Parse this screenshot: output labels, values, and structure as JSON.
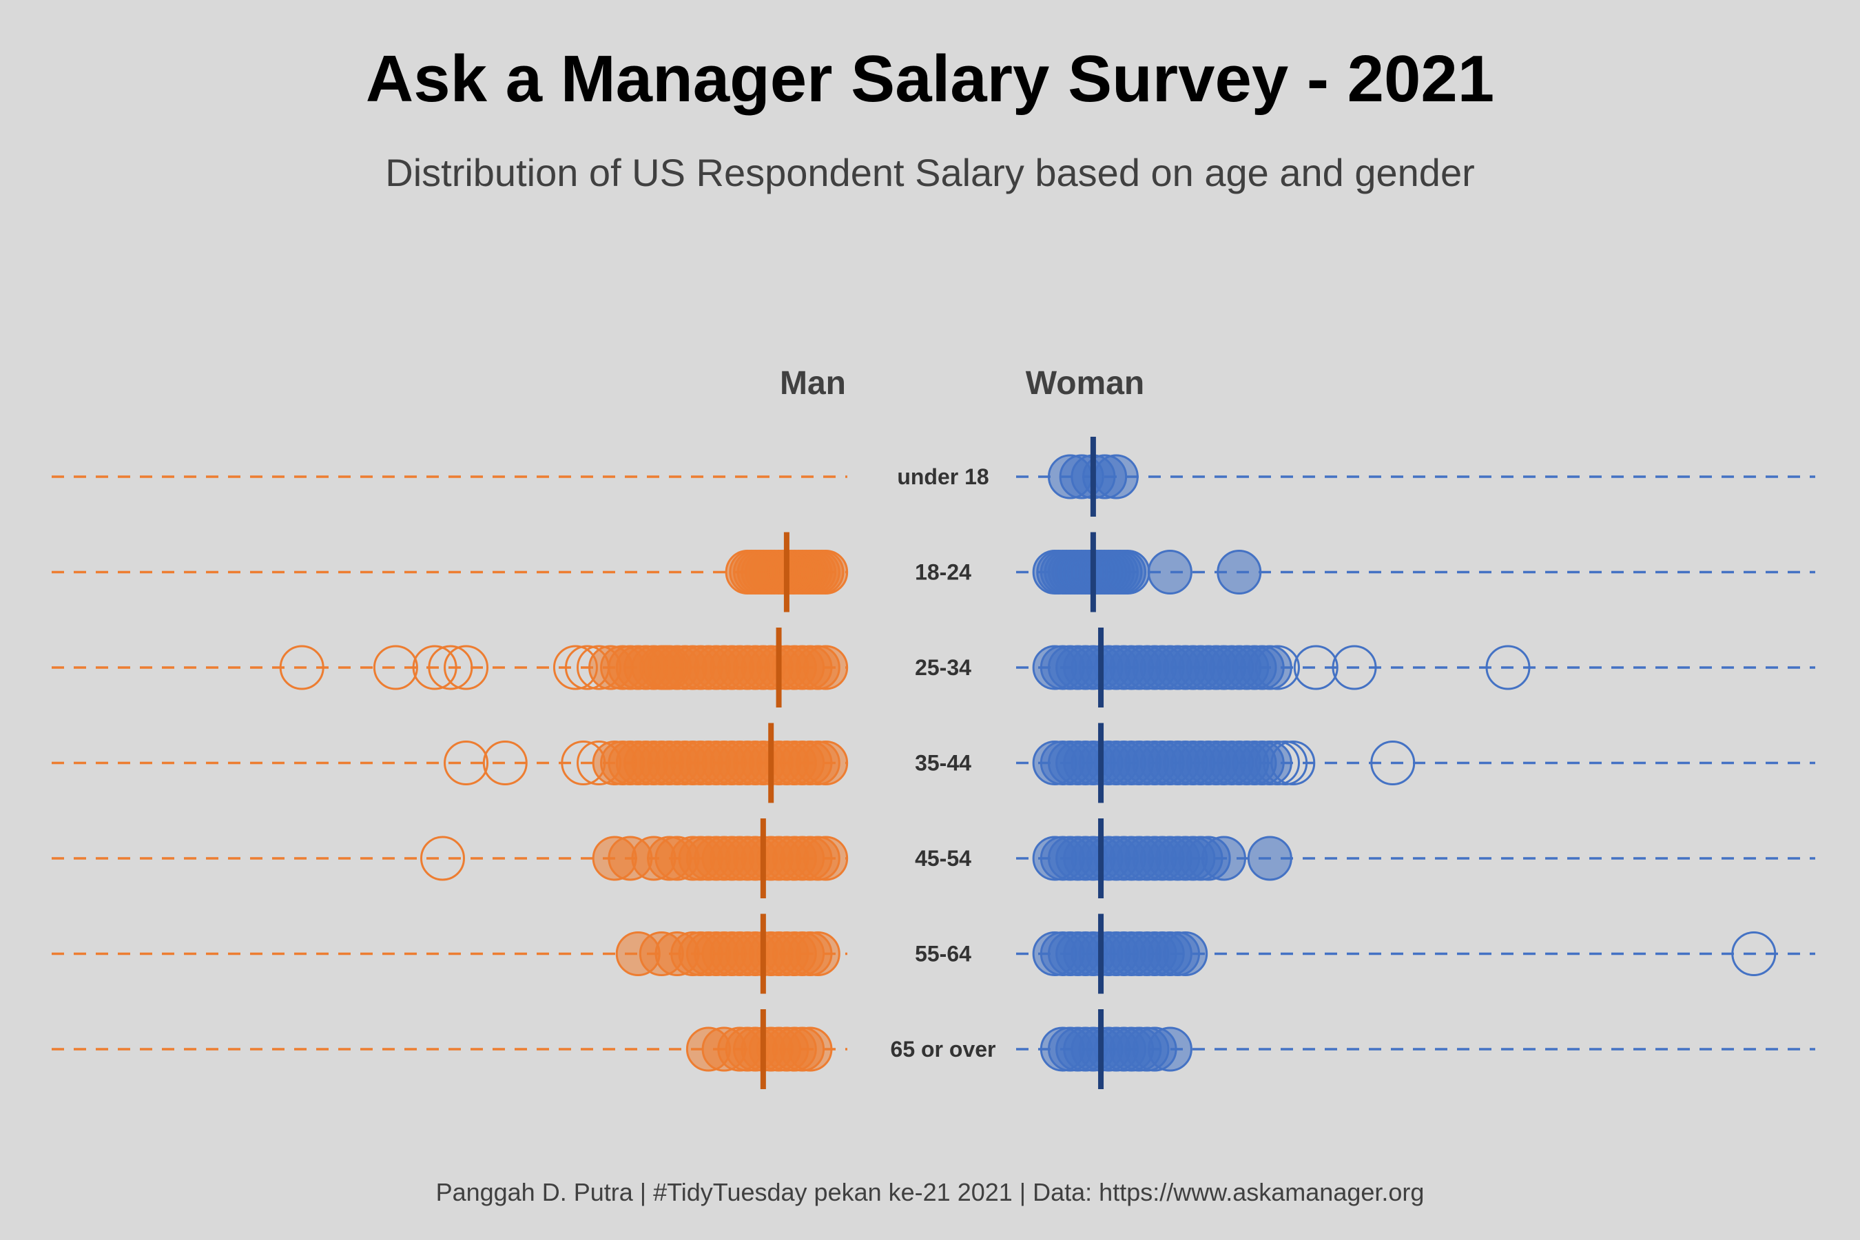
{
  "title": "Ask a Manager Salary Survey - 2021",
  "subtitle": "Distribution of US Respondent Salary based on age and gender",
  "caption": "Panggah D. Putra | #TidyTuesday pekan ke-21 2021 | Data: https://www.askamanager.org",
  "colors": {
    "man": "#ed7d31",
    "man_median": "#c55a11",
    "woman": "#4472c4",
    "woman_median": "#1f3f7a",
    "background": "#d9d9d9"
  },
  "chart_data": {
    "type": "scatter",
    "facets": [
      "Man",
      "Woman"
    ],
    "categories": [
      "under 18",
      "18-24",
      "25-34",
      "35-44",
      "45-54",
      "55-64",
      "65 or over"
    ],
    "salary_scale": [
      0,
      1
    ],
    "series": [
      {
        "name": "Man",
        "medians": [
          null,
          0.06,
          0.07,
          0.08,
          0.09,
          0.09,
          0.09
        ],
        "points": [
          [],
          [
            0.01,
            0.015,
            0.02,
            0.025,
            0.03,
            0.035,
            0.04,
            0.045,
            0.05,
            0.055,
            0.06,
            0.065,
            0.07,
            0.075,
            0.08,
            0.085,
            0.09,
            0.095,
            0.1,
            0.105,
            0.11
          ],
          [
            0.01,
            0.02,
            0.03,
            0.04,
            0.05,
            0.06,
            0.07,
            0.08,
            0.09,
            0.1,
            0.11,
            0.12,
            0.13,
            0.14,
            0.15,
            0.16,
            0.17,
            0.18,
            0.19,
            0.2,
            0.21,
            0.215,
            0.22,
            0.23,
            0.24,
            0.25,
            0.26,
            0.27,
            0.285,
            0.3,
            0.315,
            0.33,
            0.47,
            0.49,
            0.51,
            0.56,
            0.68
          ],
          [
            0.01,
            0.02,
            0.03,
            0.04,
            0.05,
            0.06,
            0.07,
            0.08,
            0.09,
            0.1,
            0.11,
            0.12,
            0.13,
            0.14,
            0.15,
            0.16,
            0.17,
            0.18,
            0.19,
            0.2,
            0.21,
            0.22,
            0.23,
            0.24,
            0.25,
            0.26,
            0.27,
            0.28,
            0.3,
            0.32,
            0.42,
            0.47
          ],
          [
            0.01,
            0.02,
            0.03,
            0.04,
            0.05,
            0.06,
            0.07,
            0.08,
            0.09,
            0.1,
            0.11,
            0.12,
            0.13,
            0.14,
            0.15,
            0.16,
            0.17,
            0.18,
            0.2,
            0.21,
            0.23,
            0.26,
            0.28,
            0.5
          ],
          [
            0.02,
            0.03,
            0.04,
            0.05,
            0.06,
            0.07,
            0.08,
            0.09,
            0.1,
            0.11,
            0.12,
            0.13,
            0.14,
            0.15,
            0.16,
            0.17,
            0.18,
            0.2,
            0.22,
            0.25
          ],
          [
            0.03,
            0.04,
            0.05,
            0.06,
            0.07,
            0.08,
            0.09,
            0.1,
            0.11,
            0.12,
            0.14,
            0.16
          ]
        ]
      },
      {
        "name": "Woman",
        "medians": [
          0.06,
          0.06,
          0.07,
          0.07,
          0.07,
          0.07,
          0.07
        ],
        "points": [
          [
            0.03,
            0.045,
            0.06,
            0.075,
            0.09
          ],
          [
            0.01,
            0.015,
            0.02,
            0.025,
            0.03,
            0.035,
            0.04,
            0.045,
            0.05,
            0.055,
            0.06,
            0.065,
            0.07,
            0.075,
            0.08,
            0.085,
            0.09,
            0.095,
            0.1,
            0.105,
            0.16,
            0.25
          ],
          [
            0.01,
            0.02,
            0.03,
            0.04,
            0.05,
            0.06,
            0.07,
            0.08,
            0.09,
            0.1,
            0.11,
            0.12,
            0.13,
            0.14,
            0.15,
            0.16,
            0.17,
            0.18,
            0.19,
            0.2,
            0.21,
            0.22,
            0.23,
            0.24,
            0.25,
            0.26,
            0.27,
            0.28,
            0.29,
            0.3,
            0.35,
            0.4,
            0.6
          ],
          [
            0.01,
            0.02,
            0.03,
            0.04,
            0.05,
            0.06,
            0.07,
            0.08,
            0.09,
            0.1,
            0.11,
            0.12,
            0.13,
            0.14,
            0.15,
            0.16,
            0.17,
            0.18,
            0.19,
            0.2,
            0.21,
            0.22,
            0.23,
            0.24,
            0.25,
            0.26,
            0.27,
            0.28,
            0.29,
            0.3,
            0.31,
            0.32,
            0.45
          ],
          [
            0.01,
            0.02,
            0.03,
            0.04,
            0.05,
            0.06,
            0.07,
            0.08,
            0.09,
            0.1,
            0.11,
            0.12,
            0.13,
            0.14,
            0.15,
            0.16,
            0.17,
            0.18,
            0.19,
            0.2,
            0.21,
            0.23,
            0.29
          ],
          [
            0.01,
            0.02,
            0.03,
            0.04,
            0.05,
            0.06,
            0.07,
            0.08,
            0.09,
            0.1,
            0.11,
            0.12,
            0.13,
            0.14,
            0.15,
            0.16,
            0.17,
            0.18,
            0.92
          ],
          [
            0.02,
            0.03,
            0.04,
            0.05,
            0.06,
            0.07,
            0.08,
            0.09,
            0.1,
            0.11,
            0.12,
            0.13,
            0.14,
            0.16
          ]
        ]
      }
    ],
    "grid": false,
    "legend": "none"
  }
}
